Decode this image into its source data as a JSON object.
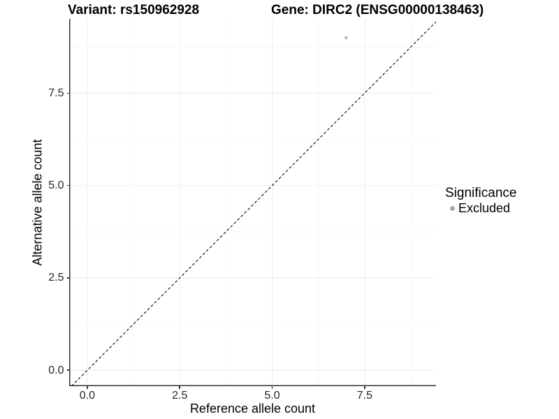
{
  "titles": {
    "variant": "Variant: rs150962928",
    "gene": "Gene: DIRC2 (ENSG00000138463)"
  },
  "axes": {
    "x_label": "Reference allele count",
    "y_label": "Alternative allele count",
    "x_tick_labels": [
      "0.0",
      "2.5",
      "5.0",
      "7.5"
    ],
    "y_tick_labels": [
      "0.0",
      "2.5",
      "5.0",
      "7.5"
    ]
  },
  "legend": {
    "title": "Significance",
    "items": [
      {
        "label": "Excluded",
        "color": "#a8a8a8"
      }
    ]
  },
  "colors": {
    "axis_line": "#333333",
    "tick_mark": "#333333",
    "grid_major": "#ececec",
    "grid_minor": "#f6f6f6",
    "reference_line": "#1a1a1a",
    "point": "#b9b9b9",
    "background": "#ffffff"
  },
  "chart_data": {
    "type": "scatter",
    "title": "Variant: rs150962928   Gene: DIRC2 (ENSG00000138463)",
    "xlabel": "Reference allele count",
    "ylabel": "Alternative allele count",
    "xlim": [
      -0.49,
      9.43
    ],
    "ylim": [
      -0.43,
      9.51
    ],
    "x_ticks": [
      0,
      2.5,
      5,
      7.5
    ],
    "y_ticks": [
      0,
      2.5,
      5,
      7.5
    ],
    "x_minor_ticks": [
      1.25,
      3.75,
      6.25,
      8.75
    ],
    "y_minor_ticks": [
      1.25,
      3.75,
      6.25,
      8.75
    ],
    "grid": true,
    "legend_position": "right",
    "legend_title": "Significance",
    "series": [
      {
        "name": "Excluded",
        "color": "#b9b9b9",
        "points": [
          {
            "x": 7,
            "y": 9
          }
        ]
      }
    ],
    "reference_line": {
      "type": "identity",
      "equation": "y = x",
      "style": "dashed",
      "color": "#1a1a1a"
    }
  }
}
